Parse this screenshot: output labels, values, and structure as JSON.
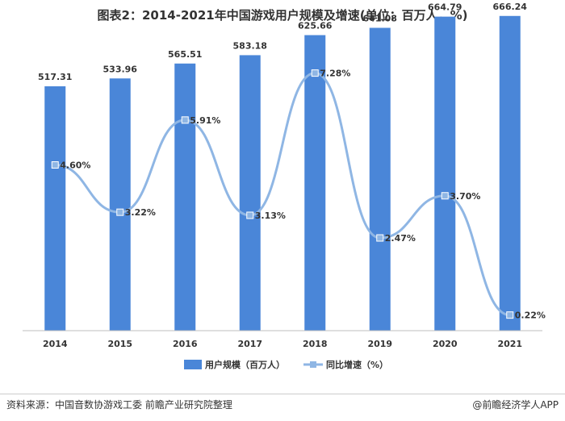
{
  "chart_data": {
    "type": "bar",
    "title": "图表2：2014-2021年中国游戏用户规模及增速(单位：百万人，%)",
    "categories": [
      "2014",
      "2015",
      "2016",
      "2017",
      "2018",
      "2019",
      "2020",
      "2021"
    ],
    "series": [
      {
        "name": "用户规模（百万人）",
        "type": "bar",
        "values": [
          517.31,
          533.96,
          565.51,
          583.18,
          625.66,
          641.08,
          664.79,
          666.24
        ],
        "labels": [
          "517.31",
          "533.96",
          "565.51",
          "583.18",
          "625.66",
          "641.08",
          "664.79",
          "666.24"
        ],
        "color": "#4a86d8"
      },
      {
        "name": "同比增速（%）",
        "type": "line",
        "smooth": true,
        "values": [
          4.6,
          3.22,
          5.91,
          3.13,
          7.28,
          2.47,
          3.7,
          0.22
        ],
        "labels": [
          "4.60%",
          "3.22%",
          "5.91%",
          "3.13%",
          "7.28%",
          "2.47%",
          "3.70%",
          "0.22%"
        ],
        "color": "#8fb6e4"
      }
    ],
    "bar_axis_range": [
      0,
      700
    ],
    "line_axis_range": [
      0,
      8
    ],
    "grid": false,
    "legend": "bottom"
  },
  "footer": {
    "source": "资料来源：中国音数协游戏工委 前瞻产业研究院整理",
    "brand": "@前瞻经济学人APP"
  }
}
